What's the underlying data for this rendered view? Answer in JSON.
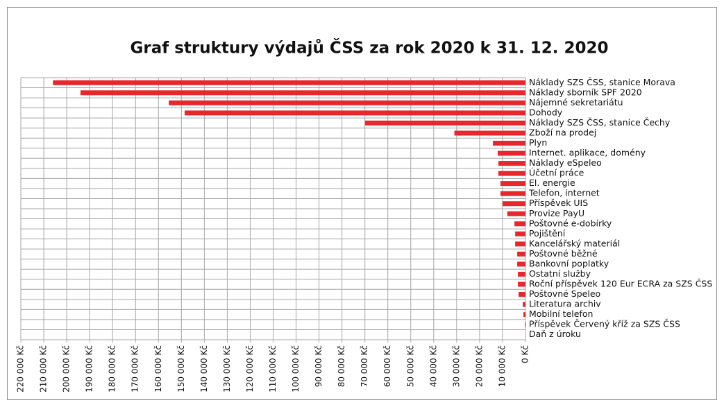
{
  "chart_data": {
    "type": "barh",
    "title": "Graf struktury výdajů ČSS za rok 2020 k 31. 12. 2020",
    "categories": [
      "Náklady SZS ČSS, stanice Morava",
      "Náklady sborník SPF 2020",
      "Nájemné sekretariátu",
      "Dohody",
      "Náklady SZS ČSS, stanice Čechy",
      "Zboží na prodej",
      "Plyn",
      "Internet. aplikace, domény",
      "Náklady eSpeleo",
      "Účetní práce",
      "El. energie",
      "Telefon, internet",
      "Příspěvek UIS",
      "Provize PayU",
      "Poštovné e-dobírky",
      "Pojištění",
      "Kancelářský materiál",
      "Poštovné běžné",
      "Bankovní poplatky",
      "Ostatní služby",
      "Roční příspěvek 120 Eur ECRA za SZS ČSS",
      "Poštovné Speleo",
      "Literatura archiv",
      "Mobilní telefon",
      "Příspěvek Červený kříž za SZS ČSS",
      "Daň z úroku"
    ],
    "values": [
      206000,
      194000,
      155500,
      148600,
      70000,
      31000,
      14200,
      12100,
      11800,
      11800,
      10900,
      10900,
      10000,
      7900,
      4800,
      4500,
      4500,
      3600,
      3600,
      3300,
      3300,
      3000,
      1200,
      900,
      300,
      0
    ],
    "color": "#e8262b",
    "xlim": [
      220000,
      0
    ],
    "xticks": [
      {
        "value": 220000,
        "label": "220 000 Kč"
      },
      {
        "value": 210000,
        "label": "210 000 Kč"
      },
      {
        "value": 200000,
        "label": "200 000 Kč"
      },
      {
        "value": 190000,
        "label": "190 000 Kč"
      },
      {
        "value": 180000,
        "label": "180 000 Kč"
      },
      {
        "value": 170000,
        "label": "170 000 Kč"
      },
      {
        "value": 160000,
        "label": "160 000 Kč"
      },
      {
        "value": 150000,
        "label": "150 000 Kč"
      },
      {
        "value": 140000,
        "label": "140 000 Kč"
      },
      {
        "value": 130000,
        "label": "130 000 Kč"
      },
      {
        "value": 120000,
        "label": "120 000 Kč"
      },
      {
        "value": 110000,
        "label": "110 000 Kč"
      },
      {
        "value": 100000,
        "label": "100 000 Kč"
      },
      {
        "value": 90000,
        "label": "90 000 Kč"
      },
      {
        "value": 80000,
        "label": "80 000 Kč"
      },
      {
        "value": 70000,
        "label": "70 000 Kč"
      },
      {
        "value": 60000,
        "label": "60 000 Kč"
      },
      {
        "value": 50000,
        "label": "50 000 Kč"
      },
      {
        "value": 40000,
        "label": "40 000 Kč"
      },
      {
        "value": 30000,
        "label": "30 000 Kč"
      },
      {
        "value": 20000,
        "label": "20 000 Kč"
      },
      {
        "value": 10000,
        "label": "10 000 Kč"
      },
      {
        "value": 0,
        "label": "0 Kč"
      }
    ],
    "grid": true
  }
}
